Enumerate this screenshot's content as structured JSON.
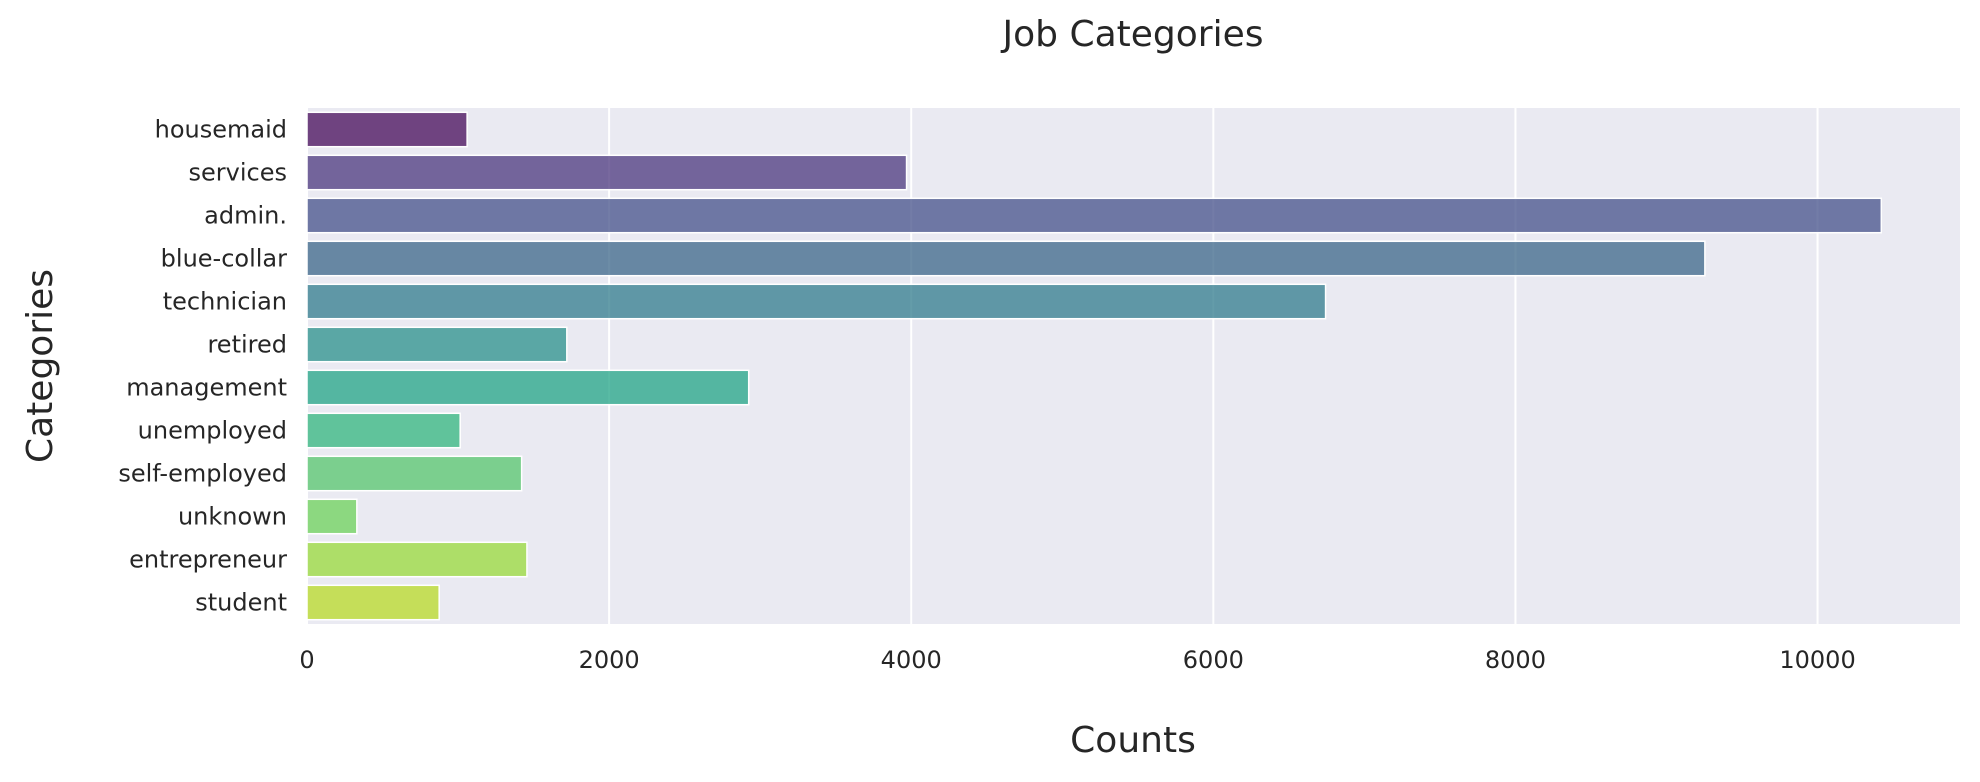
{
  "chart_data": {
    "type": "bar",
    "orientation": "horizontal",
    "title": "Job Categories",
    "xlabel": "Counts",
    "ylabel": "Categories",
    "categories": [
      "housemaid",
      "services",
      "admin.",
      "blue-collar",
      "technician",
      "retired",
      "management",
      "unemployed",
      "self-employed",
      "unknown",
      "entrepreneur",
      "student"
    ],
    "values": [
      1060,
      3969,
      10422,
      9254,
      6743,
      1720,
      2924,
      1014,
      1421,
      330,
      1456,
      875
    ],
    "xlim": [
      0,
      10943
    ],
    "xticks": [
      0,
      2000,
      4000,
      6000,
      8000,
      10000
    ],
    "xtick_labels": [
      "0",
      "2000",
      "4000",
      "6000",
      "8000",
      "10000"
    ],
    "grid": true,
    "grid_axis": "x",
    "style": "seaborn-darkgrid",
    "palette": "viridis",
    "colors": [
      "#450b59",
      "#4b377e",
      "#44508a",
      "#3b6688",
      "#307b8c",
      "#29908b",
      "#22a486",
      "#32b57e",
      "#56c56c",
      "#6cd15a",
      "#98da3a",
      "#b8d926"
    ],
    "background_color": "#eaeaf2",
    "bar_opacity": 0.75
  }
}
